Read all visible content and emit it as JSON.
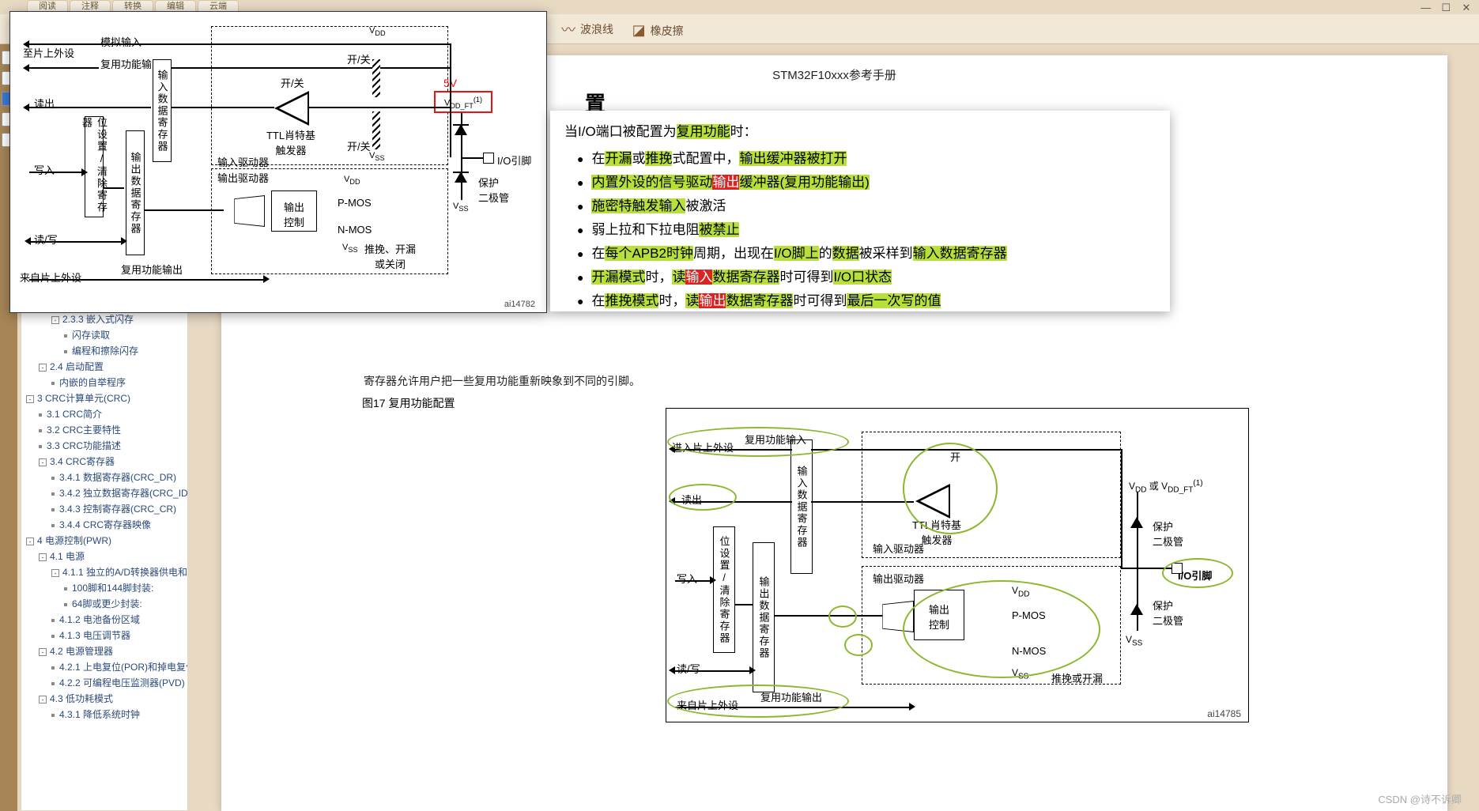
{
  "window": {
    "topTabs": [
      "阅读",
      "注释",
      "转换",
      "编辑",
      "云端"
    ],
    "min": "—",
    "max": "☐",
    "close": "✕"
  },
  "toolbar": {
    "wavyline": "波浪线",
    "eraser": "橡皮擦"
  },
  "doc": {
    "title": "STM32F10xxx参考手册",
    "section": "置",
    "partial": "寄存器允许用户把一些复用功能重新映象到不同的引脚。",
    "figcap": "图17     复用功能配置"
  },
  "sidebar": [
    {
      "lvl": 3,
      "tw": "-",
      "txt": "2.3.3 嵌入式闪存"
    },
    {
      "lvl": 4,
      "leaf": 1,
      "txt": "闪存读取"
    },
    {
      "lvl": 4,
      "leaf": 1,
      "txt": "编程和擦除闪存"
    },
    {
      "lvl": 2,
      "tw": "-",
      "txt": "2.4 启动配置"
    },
    {
      "lvl": 3,
      "leaf": 1,
      "txt": "内嵌的自举程序"
    },
    {
      "lvl": 1,
      "tw": "-",
      "txt": "3 CRC计算单元(CRC)"
    },
    {
      "lvl": 2,
      "leaf": 1,
      "txt": "3.1 CRC简介"
    },
    {
      "lvl": 2,
      "leaf": 1,
      "txt": "3.2 CRC主要特性"
    },
    {
      "lvl": 2,
      "leaf": 1,
      "txt": "3.3 CRC功能描述"
    },
    {
      "lvl": 2,
      "tw": "-",
      "txt": "3.4 CRC寄存器"
    },
    {
      "lvl": 3,
      "leaf": 1,
      "txt": "3.4.1 数据寄存器(CRC_DR)"
    },
    {
      "lvl": 3,
      "leaf": 1,
      "txt": "3.4.2 独立数据寄存器(CRC_IDR)"
    },
    {
      "lvl": 3,
      "leaf": 1,
      "txt": "3.4.3 控制寄存器(CRC_CR)"
    },
    {
      "lvl": 3,
      "leaf": 1,
      "txt": "3.4.4 CRC寄存器映像"
    },
    {
      "lvl": 1,
      "tw": "-",
      "txt": "4 电源控制(PWR)"
    },
    {
      "lvl": 2,
      "tw": "-",
      "txt": "4.1 电源"
    },
    {
      "lvl": 3,
      "tw": "-",
      "txt": "4.1.1 独立的A/D转换器供电和参考电"
    },
    {
      "lvl": 4,
      "leaf": 1,
      "txt": "100脚和144脚封装:"
    },
    {
      "lvl": 4,
      "leaf": 1,
      "txt": "64脚或更少封装:"
    },
    {
      "lvl": 3,
      "leaf": 1,
      "txt": "4.1.2 电池备份区域"
    },
    {
      "lvl": 3,
      "leaf": 1,
      "txt": "4.1.3 电压调节器"
    },
    {
      "lvl": 2,
      "tw": "-",
      "txt": "4.2 电源管理器"
    },
    {
      "lvl": 3,
      "leaf": 1,
      "txt": "4.2.1 上电复位(POR)和掉电复位(PDR"
    },
    {
      "lvl": 3,
      "leaf": 1,
      "txt": "4.2.2 可编程电压监测器(PVD)"
    },
    {
      "lvl": 2,
      "tw": "-",
      "txt": "4.3 低功耗模式"
    },
    {
      "lvl": 3,
      "leaf": 1,
      "txt": "4.3.1 降低系统时钟"
    }
  ],
  "annot": {
    "lead_pre": "当I/O端口被配置为",
    "lead_hl": "复用功能",
    "lead_post": "时：",
    "b1": {
      "a": "在",
      "b": "开漏",
      "c": "或",
      "d": "推挽",
      "e": "式配置中，",
      "f": "输出缓冲器被打开"
    },
    "b2": {
      "a": "内置外设的信号驱动",
      "b": "输出",
      "c": "缓冲器(",
      "d": "复用功能输出",
      "e": ")"
    },
    "b3": {
      "a": "施密特触发输入",
      "b": "被激活"
    },
    "b4": {
      "a": "弱上拉和下拉电阻",
      "b": "被禁止"
    },
    "b5": {
      "a": "在",
      "b": "每个APB2时钟",
      "c": "周期，出现在",
      "d": "I/O脚上",
      "e": "的",
      "f": "数据",
      "g": "被采样到",
      "h": "输入数据寄存器"
    },
    "b6": {
      "a": "开漏模式",
      "b": "时，",
      "c": "读",
      "d": "输入",
      "e": "数据寄存器",
      "f": "时可得到",
      "g": "I/O口状态"
    },
    "b7": {
      "a": "在",
      "b": "推挽模式",
      "c": "时，",
      "d": "读",
      "e": "输出",
      "f": "数据寄存器",
      "g": "时可得到",
      "h": "最后一次写的值"
    }
  },
  "d1": {
    "toPeriph": "至片上外设",
    "analogIn": "模拟输入",
    "altFnIn": "复用功能输入",
    "read": "读出",
    "write": "写入",
    "readwrite": "读/写",
    "fromPeriph": "来自片上外设",
    "altFnOut": "复用功能输出",
    "bitReg": "位设置/清除寄存器",
    "inDataReg": "输入数据寄存器",
    "outDataReg": "输出数据寄存器",
    "ttl1": "TTL肖特基",
    "ttl2": "触发器",
    "onoff": "开/关",
    "inDriver": "输入驱动器",
    "outDriver": "输出驱动器",
    "outCtrl": "输出\n控制",
    "vdd": "V",
    "vddSub": "DD",
    "vss": "V",
    "vssSub": "SS",
    "vddft": "V",
    "vddftSub": "DD_FT",
    "vddftSup": "(1)",
    "pmos": "P-MOS",
    "nmos": "N-MOS",
    "modeLabel": "推挽、开漏\n或关闭",
    "ioPin": "I/O引脚",
    "prot": "保护\n二极管",
    "five": "5V",
    "figid": "ai14782"
  },
  "d2": {
    "toPeriph": "进入片上外设",
    "altFnIn": "复用功能输入",
    "read": "读出",
    "write": "写入",
    "readwrite": "读/写",
    "fromPeriph": "来自片上外设",
    "altFnOut": "复用功能输出",
    "bitReg": "位设置/清除寄存器",
    "inDataReg": "输入数据寄存器",
    "outDataReg": "输出数据寄存器",
    "inDriver": "输入驱动器",
    "outDriver": "输出驱动器",
    "ttl1": "TTL肖特基",
    "ttl2": "触发器",
    "on": "开",
    "outCtrl": "输出\n控制",
    "vdd": "V",
    "vddSub": "DD",
    "vss": "V",
    "vssSub": "SS",
    "vddft": "V",
    "vddOr": " 或 V",
    "vddftSub": "DD_FT",
    "vddftSup": "(1)",
    "pmos": "P-MOS",
    "nmos": "N-MOS",
    "modeLabel": "推挽或开漏",
    "ioPin": "I/O引脚",
    "prot": "保护\n二极管",
    "figid": "ai14785"
  },
  "watermark": "CSDN @诗不诉卿"
}
